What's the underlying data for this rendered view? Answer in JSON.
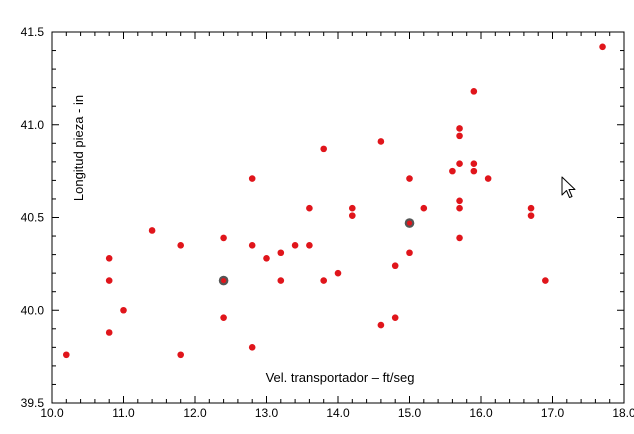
{
  "chart_data": {
    "type": "scatter",
    "title": "",
    "xlabel": "Vel. transportador – ft/seg",
    "ylabel": "Longitud pieza - in",
    "xlim": [
      10.0,
      18.0
    ],
    "ylim": [
      39.5,
      41.5
    ],
    "grid": false,
    "x_ticks": [
      "10.0",
      "11.0",
      "12.0",
      "13.0",
      "14.0",
      "15.0",
      "16.0",
      "17.0",
      "18.0"
    ],
    "y_ticks": [
      "39.5",
      "40.0",
      "40.5",
      "41.0",
      "41.5"
    ],
    "colors": {
      "point": "#e0151b",
      "highlight_ring": "#555555",
      "axis": "#000000"
    },
    "points": [
      {
        "x": 10.2,
        "y": 39.76
      },
      {
        "x": 10.8,
        "y": 40.28
      },
      {
        "x": 10.8,
        "y": 40.16
      },
      {
        "x": 10.8,
        "y": 39.88
      },
      {
        "x": 11.0,
        "y": 40.0
      },
      {
        "x": 11.4,
        "y": 40.43
      },
      {
        "x": 11.8,
        "y": 40.35
      },
      {
        "x": 11.8,
        "y": 39.76
      },
      {
        "x": 12.4,
        "y": 40.39
      },
      {
        "x": 12.4,
        "y": 40.16,
        "highlight": true
      },
      {
        "x": 12.4,
        "y": 39.96
      },
      {
        "x": 12.8,
        "y": 40.71
      },
      {
        "x": 12.8,
        "y": 40.35
      },
      {
        "x": 12.8,
        "y": 39.8
      },
      {
        "x": 13.0,
        "y": 40.28
      },
      {
        "x": 13.2,
        "y": 40.31
      },
      {
        "x": 13.2,
        "y": 40.16
      },
      {
        "x": 13.4,
        "y": 40.35
      },
      {
        "x": 13.6,
        "y": 40.55
      },
      {
        "x": 13.6,
        "y": 40.35
      },
      {
        "x": 13.8,
        "y": 40.87
      },
      {
        "x": 13.8,
        "y": 40.16
      },
      {
        "x": 14.0,
        "y": 40.2
      },
      {
        "x": 14.2,
        "y": 40.55
      },
      {
        "x": 14.2,
        "y": 40.51
      },
      {
        "x": 14.6,
        "y": 40.91
      },
      {
        "x": 14.6,
        "y": 39.92
      },
      {
        "x": 14.8,
        "y": 40.24
      },
      {
        "x": 14.8,
        "y": 39.96
      },
      {
        "x": 15.0,
        "y": 40.71
      },
      {
        "x": 15.0,
        "y": 40.47,
        "highlight": true
      },
      {
        "x": 15.0,
        "y": 40.31
      },
      {
        "x": 15.2,
        "y": 40.55
      },
      {
        "x": 15.6,
        "y": 40.75
      },
      {
        "x": 15.7,
        "y": 40.98
      },
      {
        "x": 15.7,
        "y": 40.94
      },
      {
        "x": 15.7,
        "y": 40.79
      },
      {
        "x": 15.7,
        "y": 40.59
      },
      {
        "x": 15.7,
        "y": 40.55
      },
      {
        "x": 15.7,
        "y": 40.39
      },
      {
        "x": 15.9,
        "y": 41.18
      },
      {
        "x": 15.9,
        "y": 40.79
      },
      {
        "x": 15.9,
        "y": 40.75
      },
      {
        "x": 16.1,
        "y": 40.71
      },
      {
        "x": 16.7,
        "y": 40.55
      },
      {
        "x": 16.7,
        "y": 40.51
      },
      {
        "x": 16.9,
        "y": 40.16
      },
      {
        "x": 17.7,
        "y": 41.42
      }
    ]
  }
}
